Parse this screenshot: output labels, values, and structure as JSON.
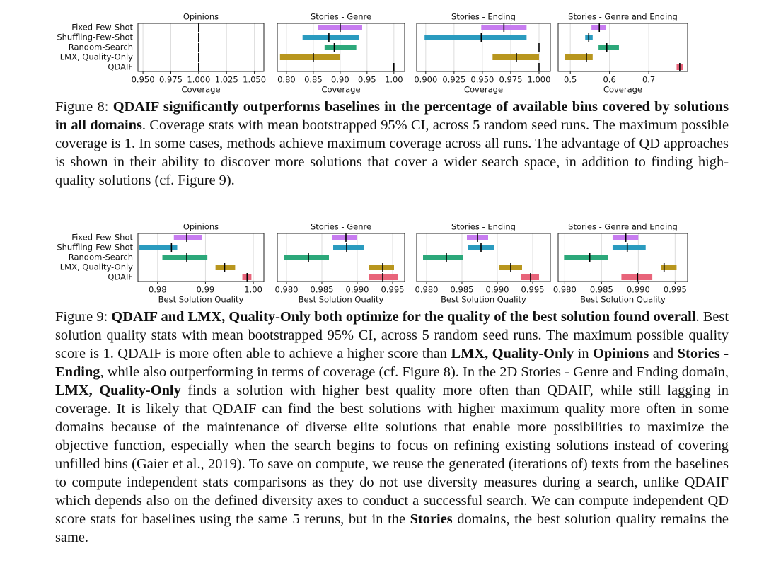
{
  "chart_data": [
    {
      "type": "interval",
      "title": "Opinions",
      "xlabel": "Coverage",
      "categories": [
        "Fixed-Few-Shot",
        "Shuffling-Few-Shot",
        "Random-Search",
        "LMX, Quality-Only",
        "QDAIF"
      ],
      "colors": [
        "#c77cf0",
        "#2a9bbf",
        "#2ca87a",
        "#b8961e",
        "#e8647a"
      ],
      "low": [
        null,
        null,
        null,
        null,
        null
      ],
      "high": [
        null,
        null,
        null,
        null,
        null
      ],
      "mean": [
        1.0,
        1.0,
        1.0,
        1.0,
        1.0
      ],
      "xlim": [
        0.9455,
        1.0585
      ],
      "grid": true,
      "xticks": [
        {
          "value": 0.95,
          "label": "0.950"
        },
        {
          "value": 0.975,
          "label": "0.975"
        },
        {
          "value": 1.0,
          "label": "1.000"
        },
        {
          "value": 1.025,
          "label": "1.025"
        },
        {
          "value": 1.05,
          "label": "1.050"
        }
      ]
    },
    {
      "type": "interval",
      "title": "Stories - Genre",
      "xlabel": "Coverage",
      "colors": [
        "#c77cf0",
        "#2a9bbf",
        "#2ca87a",
        "#b8961e",
        "#e8647a"
      ],
      "low": [
        0.859,
        0.83,
        0.871,
        0.788,
        null
      ],
      "high": [
        0.941,
        0.935,
        0.93,
        0.9,
        null
      ],
      "mean": [
        0.9,
        0.879,
        0.889,
        0.85,
        1.0
      ],
      "xlim": [
        0.783,
        1.02
      ],
      "grid": true,
      "xticks": [
        {
          "value": 0.8,
          "label": "0.80"
        },
        0.85,
        {
          "value": 0.9,
          "label": "0.90"
        },
        0.95,
        {
          "value": 1.0,
          "label": "1.00"
        }
      ]
    },
    {
      "type": "interval",
      "title": "Stories - Ending",
      "xlabel": "Coverage",
      "colors": [
        "#c77cf0",
        "#2a9bbf",
        "#2ca87a",
        "#b8961e",
        "#e8647a"
      ],
      "low": [
        0.949,
        0.899,
        null,
        0.959,
        null
      ],
      "high": [
        0.989,
        0.989,
        null,
        1.0,
        null
      ],
      "mean": [
        0.969,
        0.949,
        1.0,
        0.98,
        1.0
      ],
      "xlim": [
        0.892,
        1.01
      ],
      "grid": true,
      "xticks": [
        {
          "value": 0.9,
          "label": "0.900"
        },
        {
          "value": 0.925,
          "label": "0.925"
        },
        {
          "value": 0.95,
          "label": "0.950"
        },
        {
          "value": 0.975,
          "label": "0.975"
        },
        {
          "value": 1.0,
          "label": "1.000"
        }
      ]
    },
    {
      "type": "interval",
      "title": "Stories - Genre and Ending",
      "xlabel": "Coverage",
      "colors": [
        "#c77cf0",
        "#2a9bbf",
        "#2ca87a",
        "#b8961e",
        "#e8647a"
      ],
      "low": [
        0.554,
        0.538,
        0.572,
        0.487,
        0.771
      ],
      "high": [
        0.591,
        0.557,
        0.624,
        0.557,
        0.787
      ],
      "mean": [
        0.574,
        0.547,
        0.593,
        0.541,
        0.779
      ],
      "xlim": [
        0.469,
        0.799
      ],
      "grid": true,
      "xticks": [
        0.5,
        0.6,
        0.7
      ]
    },
    {
      "type": "interval",
      "title": "Opinions",
      "xlabel": "Best Solution Quality",
      "categories": [
        "Fixed-Few-Shot",
        "Shuffling-Few-Shot",
        "Random-Search",
        "LMX, Quality-Only",
        "QDAIF"
      ],
      "colors": [
        "#c77cf0",
        "#2a9bbf",
        "#2ca87a",
        "#b8961e",
        "#e8647a"
      ],
      "low": [
        0.9834,
        0.9762,
        0.981,
        0.9921,
        0.9977
      ],
      "high": [
        0.9892,
        0.9841,
        0.9904,
        0.9962,
        0.9996
      ],
      "mean": [
        0.9861,
        0.9829,
        0.9861,
        0.994,
        0.9987
      ],
      "xlim": [
        0.9759,
        1.0022
      ],
      "grid": true,
      "xticks": [
        0.98,
        0.99,
        {
          "value": 1.0,
          "label": "1.00"
        }
      ]
    },
    {
      "type": "interval",
      "title": "Stories - Genre",
      "xlabel": "Best Solution Quality",
      "colors": [
        "#c77cf0",
        "#2a9bbf",
        "#2ca87a",
        "#b8961e",
        "#e8647a"
      ],
      "low": [
        0.9864,
        0.9866,
        0.9797,
        0.9917,
        0.9917
      ],
      "high": [
        0.99,
        0.9909,
        0.986,
        0.9952,
        0.9957
      ],
      "mean": [
        0.9884,
        0.9885,
        0.9831,
        0.9936,
        0.9936
      ],
      "xlim": [
        0.9787,
        0.9967
      ],
      "grid": true,
      "xticks": [
        {
          "value": 0.98,
          "label": "0.980"
        },
        0.985,
        {
          "value": 0.99,
          "label": "0.990"
        },
        0.995
      ]
    },
    {
      "type": "interval",
      "title": "Stories - Ending",
      "xlabel": "Best Solution Quality",
      "colors": [
        "#c77cf0",
        "#2a9bbf",
        "#2ca87a",
        "#b8961e",
        "#e8647a"
      ],
      "low": [
        0.9857,
        0.9858,
        0.9795,
        0.9903,
        0.9934
      ],
      "high": [
        0.9887,
        0.9896,
        0.9852,
        0.9935,
        0.9959
      ],
      "mean": [
        0.9872,
        0.9877,
        0.9828,
        0.9919,
        0.9947
      ],
      "xlim": [
        0.9786,
        0.9975
      ],
      "grid": true,
      "xticks": [
        {
          "value": 0.98,
          "label": "0.980"
        },
        0.985,
        {
          "value": 0.99,
          "label": "0.990"
        },
        0.995
      ]
    },
    {
      "type": "interval",
      "title": "Stories - Genre and Ending",
      "xlabel": "Best Solution Quality",
      "colors": [
        "#c77cf0",
        "#2a9bbf",
        "#2ca87a",
        "#b8961e",
        "#e8647a"
      ],
      "low": [
        0.9865,
        0.9865,
        0.9799,
        0.9931,
        0.9877
      ],
      "high": [
        0.99,
        0.991,
        0.9859,
        0.9952,
        0.9919
      ],
      "mean": [
        0.9883,
        0.9885,
        0.9834,
        0.9935,
        0.9899
      ],
      "xlim": [
        0.9791,
        0.9967
      ],
      "grid": true,
      "xticks": [
        {
          "value": 0.98,
          "label": "0.980"
        },
        0.985,
        {
          "value": 0.99,
          "label": "0.990"
        },
        0.995
      ]
    }
  ],
  "captions": [
    [
      {
        "text": "Figure 8: ",
        "bold": false
      },
      {
        "text": "QDAIF significantly outperforms baselines in the percentage of available bins covered by solutions in all domains",
        "bold": true
      },
      {
        "text": ". Coverage stats with mean bootstrapped 95% CI, across 5 random seed runs. The maximum possible coverage is 1. In some cases, methods achieve maximum coverage across all runs. The advantage of QD approaches is shown in their ability to discover more solutions that cover a wider search space, in addition to finding high-quality solutions (cf. Figure 9).",
        "bold": false
      }
    ],
    [
      {
        "text": "Figure 9: ",
        "bold": false
      },
      {
        "text": "QDAIF and LMX, Quality-Only both optimize for the quality of the best solution found overall",
        "bold": true
      },
      {
        "text": ". Best solution quality stats with mean bootstrapped 95% CI, across 5 random seed runs. The maximum possible quality score is 1. QDAIF is more often able to achieve a higher score than ",
        "bold": false
      },
      {
        "text": "LMX, Quality-Only",
        "bold": true
      },
      {
        "text": " in ",
        "bold": false
      },
      {
        "text": "Opinions",
        "bold": true
      },
      {
        "text": " and ",
        "bold": false
      },
      {
        "text": "Stories - Ending",
        "bold": true
      },
      {
        "text": ", while also outperforming in terms of coverage (cf. Figure 8). In the 2D Stories - Genre and Ending domain, ",
        "bold": false
      },
      {
        "text": "LMX, Quality-Only",
        "bold": true
      },
      {
        "text": " finds a solution with higher best quality more often than QDAIF, while still lagging in coverage. It is likely that QDAIF can find the best solutions with higher maximum quality more often in some domains because of the maintenance of diverse elite solutions that enable more possibilities to maximize the objective function, especially when the search begins to focus on refining existing solutions instead of covering unfilled bins (Gaier et al., 2019). To save on compute, we reuse the generated (iterations of) texts from the baselines to compute independent stats comparisons as they do not use diversity measures during a search, unlike QDAIF which depends also on the defined diversity axes to conduct a successful search. We can compute independent QD score stats for baselines using the same 5 reruns, but in the ",
        "bold": false
      },
      {
        "text": "Stories",
        "bold": true
      },
      {
        "text": " domains, the best solution quality remains the same.",
        "bold": false
      }
    ]
  ]
}
